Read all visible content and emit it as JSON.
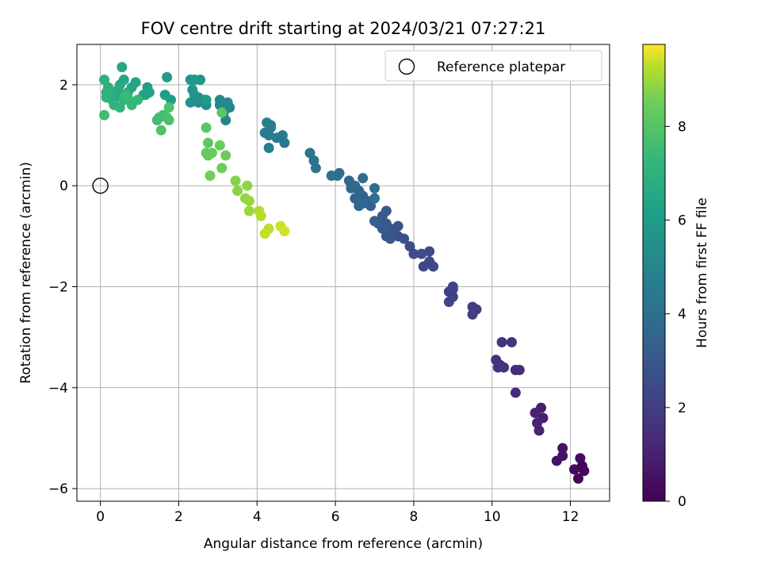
{
  "chart_data": {
    "type": "scatter",
    "title": "FOV centre drift starting at 2024/03/21 07:27:21",
    "xlabel": "Angular distance from reference (arcmin)",
    "ylabel": "Rotation from reference (arcmin)",
    "xlim": [
      -0.6,
      13.0
    ],
    "ylim": [
      -6.25,
      2.8
    ],
    "xticks": [
      0,
      2,
      4,
      6,
      8,
      10,
      12
    ],
    "yticks": [
      -6,
      -4,
      -2,
      0,
      2
    ],
    "grid": true,
    "legend": {
      "placement": "top-right",
      "entries": [
        "Reference platepar"
      ]
    },
    "reference_point": {
      "x": 0,
      "y": 0
    },
    "colorbar": {
      "label": "Hours from first FF file",
      "range": [
        0,
        9.75
      ],
      "ticks": [
        0,
        2,
        4,
        6,
        8
      ],
      "colormap": "viridis"
    },
    "series": [
      {
        "points": [
          [
            12.2,
            -5.8,
            0.2
          ],
          [
            12.35,
            -5.65,
            0.25
          ],
          [
            12.1,
            -5.62,
            0.3
          ],
          [
            12.25,
            -5.4,
            0.35
          ],
          [
            12.3,
            -5.55,
            0.2
          ],
          [
            11.8,
            -5.2,
            0.5
          ],
          [
            11.8,
            -5.35,
            0.55
          ],
          [
            11.65,
            -5.45,
            0.6
          ],
          [
            11.25,
            -4.4,
            0.9
          ],
          [
            11.3,
            -4.6,
            0.95
          ],
          [
            11.1,
            -4.5,
            1.0
          ],
          [
            11.15,
            -4.7,
            1.05
          ],
          [
            11.2,
            -4.85,
            1.1
          ],
          [
            10.6,
            -3.65,
            1.3
          ],
          [
            10.7,
            -3.65,
            1.35
          ],
          [
            10.6,
            -4.1,
            1.4
          ],
          [
            10.1,
            -3.45,
            1.5
          ],
          [
            10.2,
            -3.55,
            1.55
          ],
          [
            10.3,
            -3.6,
            1.6
          ],
          [
            10.15,
            -3.6,
            1.65
          ],
          [
            10.25,
            -3.1,
            1.7
          ],
          [
            10.5,
            -3.1,
            1.75
          ],
          [
            9.5,
            -2.4,
            1.9
          ],
          [
            9.6,
            -2.45,
            1.95
          ],
          [
            9.5,
            -2.55,
            2.0
          ],
          [
            8.9,
            -2.1,
            2.05
          ],
          [
            9.0,
            -2.05,
            2.1
          ],
          [
            9.0,
            -2.2,
            2.15
          ],
          [
            8.9,
            -2.3,
            2.2
          ],
          [
            9.0,
            -2.0,
            2.25
          ],
          [
            8.25,
            -1.6,
            2.35
          ],
          [
            8.4,
            -1.5,
            2.4
          ],
          [
            8.5,
            -1.6,
            2.45
          ],
          [
            8.4,
            -1.3,
            2.5
          ],
          [
            8.2,
            -1.35,
            2.55
          ],
          [
            8.0,
            -1.35,
            2.6
          ],
          [
            7.9,
            -1.2,
            2.65
          ],
          [
            7.75,
            -1.05,
            2.7
          ],
          [
            7.6,
            -1.0,
            2.75
          ],
          [
            7.6,
            -0.8,
            2.8
          ],
          [
            7.5,
            -0.9,
            2.85
          ],
          [
            7.4,
            -0.85,
            2.9
          ],
          [
            7.3,
            -1.0,
            2.95
          ],
          [
            7.4,
            -1.05,
            3.0
          ],
          [
            7.3,
            -0.75,
            3.05
          ],
          [
            7.2,
            -0.6,
            3.1
          ],
          [
            7.3,
            -0.5,
            3.15
          ],
          [
            7.2,
            -0.85,
            3.2
          ],
          [
            7.1,
            -0.75,
            3.25
          ],
          [
            7.0,
            -0.7,
            3.3
          ],
          [
            6.9,
            -0.4,
            3.35
          ],
          [
            6.8,
            -0.3,
            3.4
          ],
          [
            6.7,
            -0.2,
            3.45
          ],
          [
            6.6,
            -0.1,
            3.5
          ],
          [
            6.5,
            -0.25,
            3.55
          ],
          [
            6.6,
            -0.4,
            3.6
          ],
          [
            6.7,
            -0.35,
            3.65
          ],
          [
            6.5,
            0.0,
            3.7
          ],
          [
            6.4,
            -0.05,
            3.75
          ],
          [
            6.35,
            0.1,
            3.8
          ],
          [
            6.7,
            0.15,
            3.85
          ],
          [
            7.0,
            -0.05,
            3.9
          ],
          [
            7.0,
            -0.25,
            3.95
          ],
          [
            6.1,
            0.25,
            4.0
          ],
          [
            6.05,
            0.2,
            4.05
          ],
          [
            5.9,
            0.2,
            4.1
          ],
          [
            5.5,
            0.35,
            4.15
          ],
          [
            5.45,
            0.5,
            4.2
          ],
          [
            5.35,
            0.65,
            4.25
          ],
          [
            4.7,
            0.85,
            4.4
          ],
          [
            4.65,
            1.0,
            4.45
          ],
          [
            4.5,
            0.95,
            4.5
          ],
          [
            4.3,
            1.0,
            4.55
          ],
          [
            4.2,
            1.05,
            4.6
          ],
          [
            4.35,
            1.15,
            4.65
          ],
          [
            4.3,
            0.75,
            4.7
          ],
          [
            4.25,
            1.25,
            4.75
          ],
          [
            4.35,
            1.2,
            4.8
          ],
          [
            3.2,
            1.3,
            5.0
          ],
          [
            3.3,
            1.55,
            5.05
          ],
          [
            3.15,
            1.45,
            5.1
          ],
          [
            3.05,
            1.6,
            5.15
          ],
          [
            3.25,
            1.65,
            5.2
          ],
          [
            3.05,
            1.7,
            5.25
          ],
          [
            2.7,
            1.6,
            5.35
          ],
          [
            2.65,
            1.7,
            5.4
          ],
          [
            2.5,
            1.65,
            5.45
          ],
          [
            2.5,
            1.75,
            5.5
          ],
          [
            2.4,
            1.8,
            5.55
          ],
          [
            2.3,
            1.65,
            5.6
          ],
          [
            2.35,
            1.9,
            5.65
          ],
          [
            2.3,
            2.1,
            5.7
          ],
          [
            2.4,
            2.1,
            5.75
          ],
          [
            2.55,
            2.1,
            5.8
          ],
          [
            2.7,
            1.7,
            5.85
          ],
          [
            1.7,
            2.15,
            6.0
          ],
          [
            1.8,
            1.7,
            6.05
          ],
          [
            1.65,
            1.8,
            6.1
          ],
          [
            1.2,
            1.95,
            6.15
          ],
          [
            1.15,
            1.8,
            6.2
          ],
          [
            1.25,
            1.85,
            6.25
          ],
          [
            1.1,
            1.8,
            6.3
          ],
          [
            0.9,
            2.05,
            6.35
          ],
          [
            0.8,
            1.95,
            6.4
          ],
          [
            0.7,
            1.85,
            6.45
          ],
          [
            0.6,
            2.1,
            6.5
          ],
          [
            0.55,
            2.35,
            6.55
          ],
          [
            0.5,
            2.0,
            6.6
          ],
          [
            0.45,
            1.9,
            6.65
          ],
          [
            0.4,
            1.75,
            6.7
          ],
          [
            0.35,
            1.85,
            6.75
          ],
          [
            0.3,
            1.7,
            6.8
          ],
          [
            0.25,
            1.8,
            6.85
          ],
          [
            0.2,
            1.95,
            6.9
          ],
          [
            0.15,
            1.85,
            6.95
          ],
          [
            0.1,
            2.1,
            7.0
          ],
          [
            0.15,
            1.75,
            7.05
          ],
          [
            0.35,
            1.6,
            7.1
          ],
          [
            0.5,
            1.55,
            7.15
          ],
          [
            0.6,
            1.7,
            7.2
          ],
          [
            0.65,
            1.8,
            7.25
          ],
          [
            0.95,
            1.7,
            7.3
          ],
          [
            0.8,
            1.6,
            7.35
          ],
          [
            0.7,
            1.75,
            7.4
          ],
          [
            0.1,
            1.4,
            7.55
          ],
          [
            1.45,
            1.3,
            7.6
          ],
          [
            1.5,
            1.35,
            7.65
          ],
          [
            1.6,
            1.4,
            7.7
          ],
          [
            1.7,
            1.35,
            7.75
          ],
          [
            1.75,
            1.3,
            7.8
          ],
          [
            1.75,
            1.55,
            7.85
          ],
          [
            1.55,
            1.1,
            7.9
          ],
          [
            2.7,
            1.15,
            8.1
          ],
          [
            3.1,
            1.45,
            8.15
          ],
          [
            2.75,
            0.85,
            8.2
          ],
          [
            2.7,
            0.65,
            8.25
          ],
          [
            2.75,
            0.6,
            8.3
          ],
          [
            2.85,
            0.65,
            8.35
          ],
          [
            3.05,
            0.8,
            8.4
          ],
          [
            3.2,
            0.6,
            8.45
          ],
          [
            3.1,
            0.35,
            8.5
          ],
          [
            2.8,
            0.2,
            8.55
          ],
          [
            3.45,
            0.1,
            8.75
          ],
          [
            3.5,
            -0.1,
            8.8
          ],
          [
            3.75,
            0.0,
            8.85
          ],
          [
            3.7,
            -0.25,
            8.9
          ],
          [
            3.8,
            -0.3,
            8.95
          ],
          [
            3.8,
            -0.5,
            9.0
          ],
          [
            4.05,
            -0.5,
            9.2
          ],
          [
            4.1,
            -0.6,
            9.25
          ],
          [
            4.3,
            -0.85,
            9.3
          ],
          [
            4.2,
            -0.95,
            9.35
          ],
          [
            4.6,
            -0.8,
            9.4
          ],
          [
            4.7,
            -0.9,
            9.45
          ]
        ]
      }
    ]
  }
}
